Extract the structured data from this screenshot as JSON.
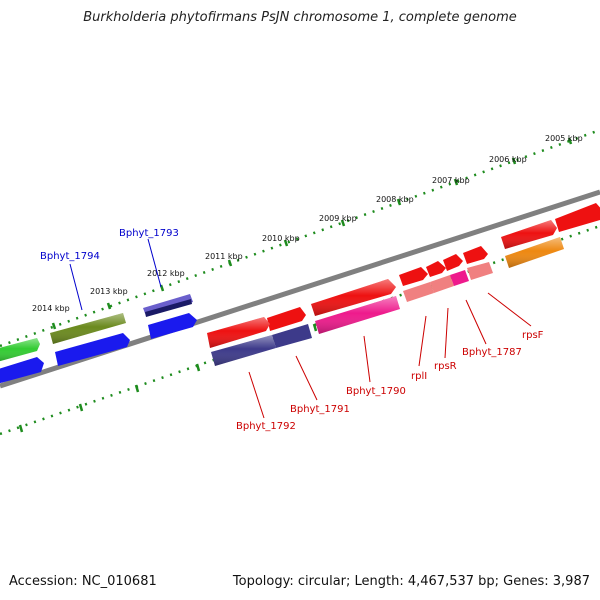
{
  "title": "Burkholderia phytofirmans PsJN chromosome 1, complete genome",
  "footer": {
    "accession": "Accession: NC_010681",
    "summary": "Topology: circular; Length: 4,467,537 bp; Genes: 3,987"
  },
  "ruler_ticks": [
    {
      "label": "2014 kbp",
      "kbp": 2014
    },
    {
      "label": "2013 kbp",
      "kbp": 2013
    },
    {
      "label": "2012 kbp",
      "kbp": 2012
    },
    {
      "label": "2011 kbp",
      "kbp": 2011
    },
    {
      "label": "2010 kbp",
      "kbp": 2010
    },
    {
      "label": "2009 kbp",
      "kbp": 2009
    },
    {
      "label": "2008 kbp",
      "kbp": 2008
    },
    {
      "label": "2007 kbp",
      "kbp": 2007
    },
    {
      "label": "2006 kbp",
      "kbp": 2006
    },
    {
      "label": "2005 kbp",
      "kbp": 2005
    }
  ],
  "gene_labels": {
    "plus_strand": [
      "Bphyt_1794",
      "Bphyt_1793"
    ],
    "minus_strand": [
      "Bphyt_1792",
      "Bphyt_1791",
      "Bphyt_1790",
      "rplI",
      "rpsR",
      "Bphyt_1787",
      "rpsF"
    ]
  },
  "colors": {
    "ruler": "#1e8c1e",
    "backbone": "#808080",
    "plus_label": "#0000cc",
    "minus_label": "#cc0000",
    "red": "#ee1111",
    "blue": "#1a1aee",
    "olive": "#6b8a1e",
    "green": "#33cc33",
    "navy": "#3d3a8a",
    "slate": "#6a5fcc",
    "magenta": "#ee1a8c",
    "pink": "#f08080",
    "orange": "#ee8811"
  }
}
